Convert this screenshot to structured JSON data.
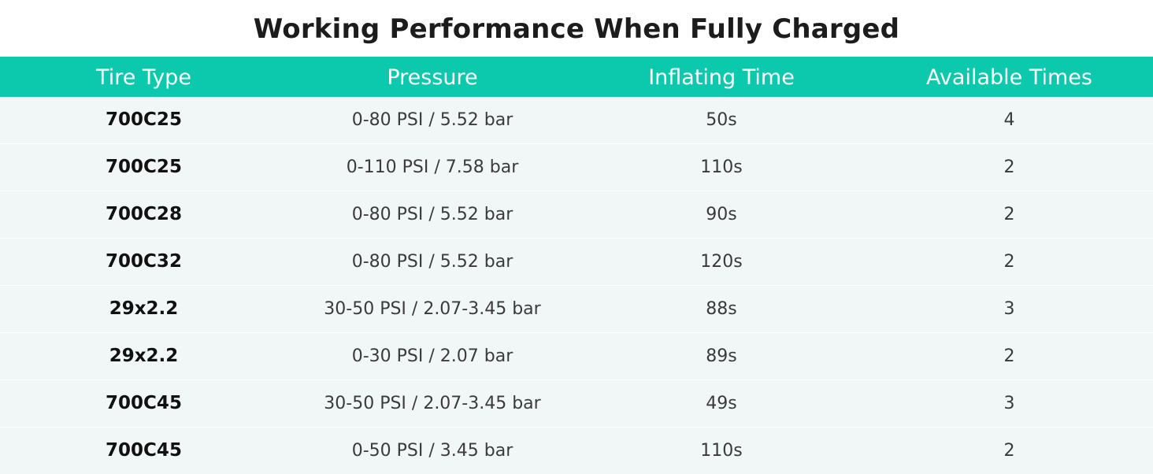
{
  "title": "Working Performance When Fully Charged",
  "colors": {
    "header_bg": "#0cc8ad",
    "row_bg": "#f1f7f6",
    "header_text": "#ffffff"
  },
  "table": {
    "headers": [
      "Tire Type",
      "Pressure",
      "Inflating Time",
      "Available Times"
    ],
    "rows": [
      [
        "700C25",
        "0-80 PSI / 5.52 bar",
        "50s",
        "4"
      ],
      [
        "700C25",
        "0-110 PSI / 7.58 bar",
        "110s",
        "2"
      ],
      [
        "700C28",
        "0-80 PSI / 5.52 bar",
        "90s",
        "2"
      ],
      [
        "700C32",
        "0-80 PSI / 5.52 bar",
        "120s",
        "2"
      ],
      [
        "29x2.2",
        "30-50 PSI / 2.07-3.45 bar",
        "88s",
        "3"
      ],
      [
        "29x2.2",
        "0-30 PSI / 2.07 bar",
        "89s",
        "2"
      ],
      [
        "700C45",
        "30-50 PSI / 2.07-3.45 bar",
        "49s",
        "3"
      ],
      [
        "700C45",
        "0-50 PSI / 3.45 bar",
        "110s",
        "2"
      ]
    ]
  }
}
